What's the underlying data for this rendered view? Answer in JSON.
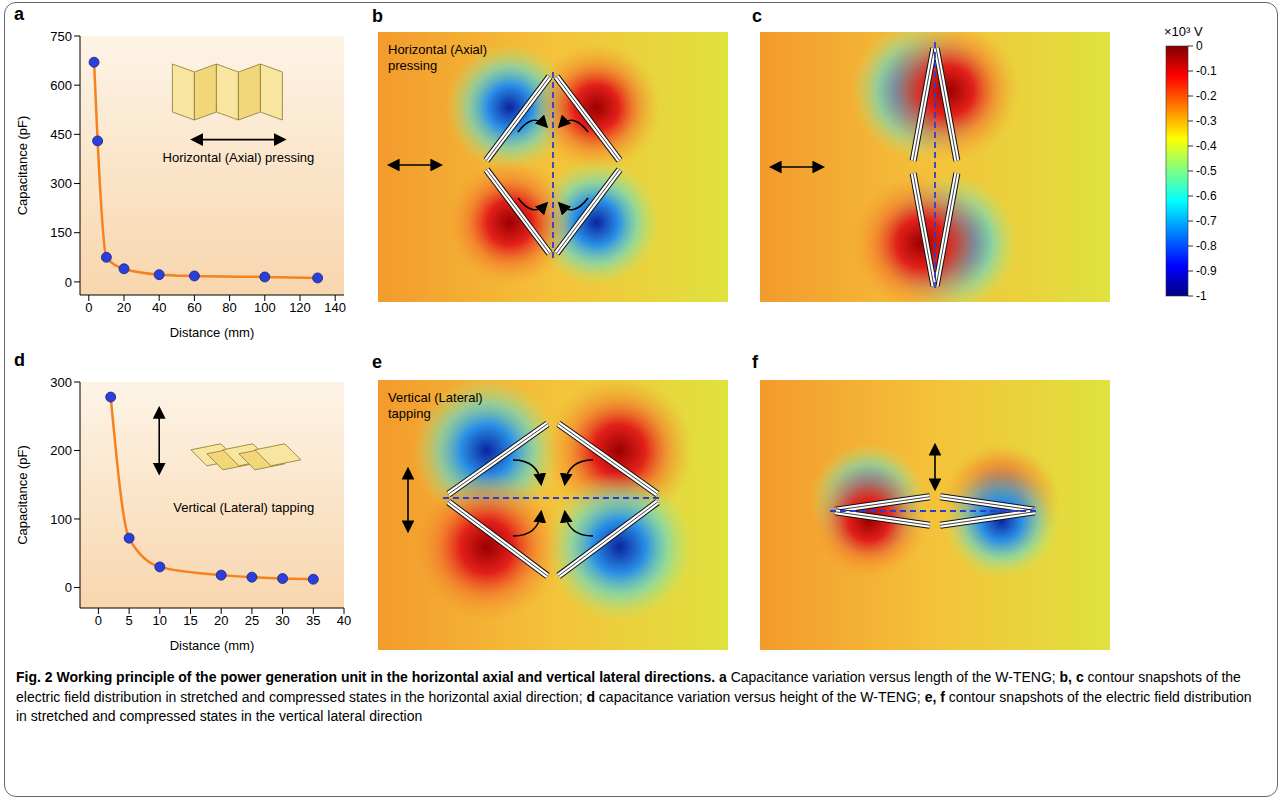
{
  "chart_data": [
    {
      "panel": "a",
      "type": "line",
      "x_label": "Distance (mm)",
      "y_label": "Capacitance (pF)",
      "annotation": "Horizontal (Axial) pressing",
      "x": [
        3,
        5,
        10,
        20,
        40,
        60,
        100,
        130
      ],
      "series": [
        {
          "type": "line",
          "color": "#f5821f",
          "values": [
            670,
            430,
            75,
            40,
            22,
            18,
            15,
            12
          ]
        },
        {
          "type": "scatter",
          "color": "#2b3fd9",
          "marker": "circle",
          "values": [
            670,
            430,
            75,
            40,
            22,
            18,
            15,
            12
          ]
        }
      ],
      "xlim": [
        -5,
        145
      ],
      "xticks": [
        0,
        20,
        40,
        60,
        80,
        100,
        120,
        140
      ],
      "ylim": [
        -40,
        750
      ],
      "yticks": [
        0,
        150,
        300,
        450,
        600,
        750
      ]
    },
    {
      "panel": "d",
      "type": "line",
      "x_label": "Distance (mm)",
      "y_label": "Capacitance (pF)",
      "annotation": "Vertical (Lateral) tapping",
      "x": [
        2,
        5,
        10,
        20,
        25,
        30,
        35
      ],
      "series": [
        {
          "type": "line",
          "color": "#f5821f",
          "values": [
            278,
            72,
            30,
            18,
            15,
            13,
            12
          ]
        },
        {
          "type": "scatter",
          "color": "#2b3fd9",
          "marker": "circle",
          "values": [
            278,
            72,
            30,
            18,
            15,
            13,
            12
          ]
        }
      ],
      "xlim": [
        -3,
        40
      ],
      "xticks": [
        0,
        5,
        10,
        15,
        20,
        25,
        30,
        35,
        40
      ],
      "ylim": [
        -30,
        300
      ],
      "yticks": [
        0,
        100,
        200,
        300
      ]
    }
  ],
  "contours": [
    {
      "panel": "b",
      "annotation": "Horizontal (Axial) pressing"
    },
    {
      "panel": "c"
    },
    {
      "panel": "e",
      "annotation": "Vertical (Lateral) tapping"
    },
    {
      "panel": "f"
    }
  ],
  "colorbar": {
    "title": "×10³ V",
    "range": [
      -1,
      0
    ],
    "ticks": [
      0,
      -0.1,
      -0.2,
      -0.3,
      -0.4,
      -0.5,
      -0.6,
      -0.7,
      -0.8,
      -0.9,
      -1
    ]
  },
  "caption": {
    "title": "Fig. 2 Working principle of the power generation unit in the horizontal axial and vertical lateral directions.",
    "parts": [
      {
        "label": "a",
        "text": "Capacitance variation versus length of the W-TENG;"
      },
      {
        "label": "b, c",
        "text": "contour snapshots of the electric field distribution in stretched and compressed states in the horizontal axial direction;"
      },
      {
        "label": "d",
        "text": "capacitance variation versus height of the W-TENG;"
      },
      {
        "label": "e, f",
        "text": "contour snapshots of the electric field distribution in stretched and compressed states in the vertical lateral direction"
      }
    ]
  }
}
